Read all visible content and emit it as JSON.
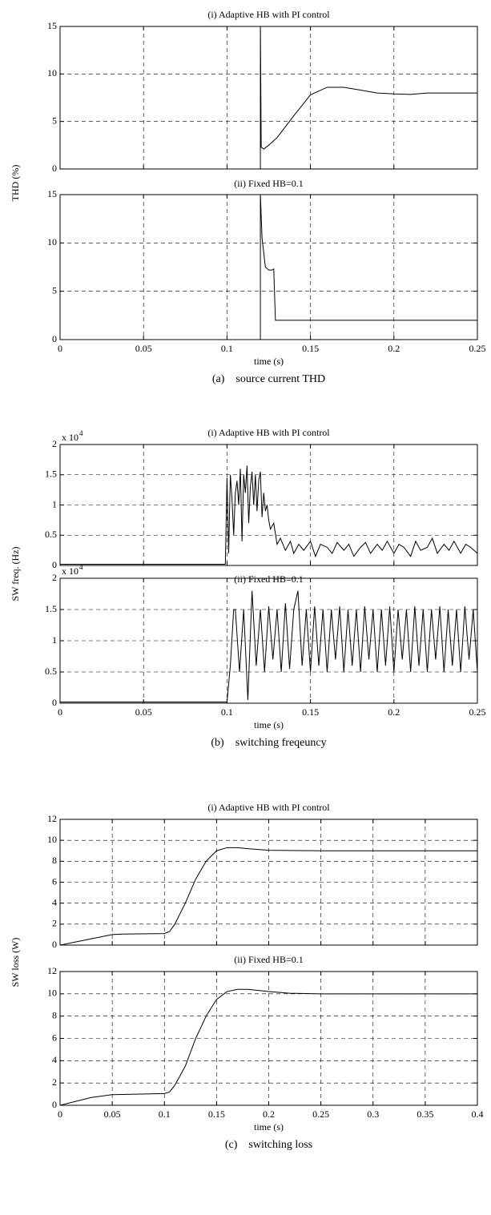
{
  "chart_data": [
    {
      "type": "line",
      "title": "(i) Adaptive HB with PI control",
      "y_label": "THD (%)",
      "x": [
        0,
        0.12,
        0.12,
        0.1205,
        0.122,
        0.125,
        0.13,
        0.14,
        0.15,
        0.16,
        0.17,
        0.18,
        0.19,
        0.2,
        0.21,
        0.22,
        0.25
      ],
      "values": [
        0,
        0,
        15,
        2.3,
        2.1,
        2.5,
        3.3,
        5.6,
        7.8,
        8.6,
        8.6,
        8.3,
        8.0,
        7.9,
        7.85,
        8.0,
        8.0
      ],
      "color": "#000000",
      "xlim": [
        0,
        0.25
      ],
      "ylim": [
        0,
        15
      ],
      "xticks": [
        0,
        0.05,
        0.1,
        0.15,
        0.2,
        0.25
      ],
      "yticks": [
        0,
        5,
        10,
        15
      ],
      "grid": true,
      "show_xtick_labels": false
    },
    {
      "type": "line",
      "title": "(ii) Fixed HB=0.1",
      "x_label": "time (s)",
      "caption": "(a)    source current THD",
      "x": [
        0,
        0.12,
        0.12,
        0.121,
        0.122,
        0.123,
        0.125,
        0.127,
        0.128,
        0.129,
        0.25
      ],
      "values": [
        0,
        0,
        15,
        10.5,
        9,
        7.5,
        7.2,
        7.2,
        7.3,
        2,
        2
      ],
      "color": "#000000",
      "xlim": [
        0,
        0.25
      ],
      "ylim": [
        0,
        15
      ],
      "xticks": [
        0,
        0.05,
        0.1,
        0.15,
        0.2,
        0.25
      ],
      "yticks": [
        0,
        5,
        10,
        15
      ],
      "grid": true,
      "show_xtick_labels": true
    },
    {
      "type": "line",
      "title": "(i) Adaptive HB with PI control",
      "y_label": "SW freq. (Hz)",
      "y_exponent_label": "x 10",
      "y_exponent": 4,
      "x": [
        0,
        0.099,
        0.1,
        0.101,
        0.102,
        0.103,
        0.104,
        0.105,
        0.106,
        0.107,
        0.108,
        0.109,
        0.11,
        0.111,
        0.112,
        0.113,
        0.114,
        0.115,
        0.116,
        0.117,
        0.118,
        0.119,
        0.12,
        0.121,
        0.122,
        0.123,
        0.124,
        0.125,
        0.126,
        0.128,
        0.13,
        0.132,
        0.135,
        0.138,
        0.14,
        0.143,
        0.146,
        0.15,
        0.153,
        0.156,
        0.16,
        0.163,
        0.166,
        0.17,
        0.173,
        0.176,
        0.18,
        0.183,
        0.186,
        0.19,
        0.193,
        0.196,
        0.2,
        0.203,
        0.206,
        0.21,
        0.213,
        0.216,
        0.22,
        0.223,
        0.226,
        0.23,
        0.233,
        0.236,
        0.24,
        0.243,
        0.246,
        0.25
      ],
      "values": [
        0.02,
        0.02,
        1.45,
        0.2,
        1.5,
        1.1,
        0.5,
        1.2,
        1.4,
        1.0,
        1.6,
        0.4,
        1.5,
        1.2,
        1.65,
        0.7,
        1.3,
        1.55,
        1.0,
        1.5,
        0.9,
        1.4,
        1.55,
        0.8,
        1.2,
        0.9,
        1.0,
        0.75,
        0.6,
        0.7,
        0.35,
        0.45,
        0.25,
        0.4,
        0.2,
        0.35,
        0.25,
        0.4,
        0.15,
        0.35,
        0.3,
        0.2,
        0.38,
        0.25,
        0.35,
        0.15,
        0.3,
        0.38,
        0.2,
        0.35,
        0.25,
        0.4,
        0.2,
        0.35,
        0.3,
        0.15,
        0.4,
        0.25,
        0.3,
        0.45,
        0.2,
        0.35,
        0.25,
        0.4,
        0.2,
        0.35,
        0.3,
        0.2
      ],
      "color": "#000000",
      "xlim": [
        0,
        0.25
      ],
      "ylim": [
        0,
        2
      ],
      "xticks": [
        0,
        0.05,
        0.1,
        0.15,
        0.2,
        0.25
      ],
      "yticks": [
        0,
        0.5,
        1,
        1.5,
        2
      ],
      "grid": true,
      "show_xtick_labels": false
    },
    {
      "type": "line",
      "title": "(ii) Fixed HB=0.1",
      "y_exponent_label": "x 10",
      "y_exponent": 4,
      "x_label": "time (s)",
      "caption": "(b)    switching freqeuncy",
      "x": [
        0,
        0.1,
        0.102,
        0.104,
        0.105,
        0.1075,
        0.11,
        0.1125,
        0.115,
        0.1175,
        0.12,
        0.1225,
        0.125,
        0.1275,
        0.13,
        0.1325,
        0.135,
        0.1375,
        0.14,
        0.1425,
        0.145,
        0.1475,
        0.15,
        0.1525,
        0.155,
        0.1575,
        0.16,
        0.1625,
        0.165,
        0.1675,
        0.17,
        0.1725,
        0.175,
        0.1775,
        0.18,
        0.1825,
        0.185,
        0.1875,
        0.19,
        0.1925,
        0.195,
        0.1975,
        0.2,
        0.2025,
        0.205,
        0.2075,
        0.21,
        0.2125,
        0.215,
        0.2175,
        0.22,
        0.2225,
        0.225,
        0.2275,
        0.23,
        0.2325,
        0.235,
        0.2375,
        0.24,
        0.2425,
        0.245,
        0.2475,
        0.25
      ],
      "values": [
        0.02,
        0.02,
        0.6,
        1.5,
        1.5,
        0.5,
        1.5,
        0.05,
        1.8,
        0.6,
        1.5,
        0.5,
        1.55,
        0.7,
        1.5,
        0.5,
        1.6,
        0.55,
        1.5,
        1.8,
        0.6,
        1.5,
        0.5,
        1.55,
        0.6,
        1.5,
        0.5,
        1.5,
        0.7,
        1.55,
        0.5,
        1.5,
        0.6,
        1.5,
        0.5,
        1.55,
        0.7,
        1.5,
        0.5,
        1.5,
        0.6,
        1.55,
        0.5,
        1.5,
        0.7,
        1.5,
        0.5,
        1.55,
        0.6,
        1.5,
        0.5,
        1.5,
        0.7,
        1.55,
        0.5,
        1.5,
        0.6,
        1.5,
        0.5,
        1.55,
        0.7,
        1.5,
        0.5
      ],
      "color": "#000000",
      "xlim": [
        0,
        0.25
      ],
      "ylim": [
        0,
        2
      ],
      "xticks": [
        0,
        0.05,
        0.1,
        0.15,
        0.2,
        0.25
      ],
      "yticks": [
        0,
        0.5,
        1,
        1.5,
        2
      ],
      "grid": true,
      "show_xtick_labels": true
    },
    {
      "type": "line",
      "title": "(i) Adaptive HB with PI control",
      "y_label": "SW loss (W)",
      "x": [
        0,
        0.02,
        0.04,
        0.05,
        0.06,
        0.1,
        0.105,
        0.11,
        0.12,
        0.13,
        0.14,
        0.15,
        0.16,
        0.17,
        0.18,
        0.2,
        0.25,
        0.4
      ],
      "values": [
        0,
        0.4,
        0.8,
        1.0,
        1.05,
        1.1,
        1.3,
        2,
        4,
        6.3,
        8,
        9,
        9.3,
        9.3,
        9.2,
        9.05,
        9.0,
        9.0
      ],
      "color": "#000000",
      "xlim": [
        0,
        0.4
      ],
      "ylim": [
        0,
        12
      ],
      "xticks": [
        0,
        0.05,
        0.1,
        0.15,
        0.2,
        0.25,
        0.3,
        0.35,
        0.4
      ],
      "yticks": [
        0,
        2,
        4,
        6,
        8,
        10,
        12
      ],
      "grid": true,
      "show_xtick_labels": false
    },
    {
      "type": "line",
      "title": "(ii) Fixed HB=0.1",
      "x_label": "time (s)",
      "caption": "(c)    switching loss",
      "x": [
        0,
        0.03,
        0.05,
        0.1,
        0.105,
        0.11,
        0.12,
        0.13,
        0.14,
        0.15,
        0.16,
        0.17,
        0.18,
        0.19,
        0.2,
        0.22,
        0.25,
        0.4
      ],
      "values": [
        0,
        0.7,
        0.95,
        1.05,
        1.2,
        1.8,
        3.5,
        6,
        8,
        9.5,
        10.2,
        10.4,
        10.4,
        10.3,
        10.2,
        10.05,
        10.0,
        10.0
      ],
      "color": "#000000",
      "xlim": [
        0,
        0.4
      ],
      "ylim": [
        0,
        12
      ],
      "xticks": [
        0,
        0.05,
        0.1,
        0.15,
        0.2,
        0.25,
        0.3,
        0.35,
        0.4
      ],
      "yticks": [
        0,
        2,
        4,
        6,
        8,
        10,
        12
      ],
      "grid": true,
      "show_xtick_labels": true
    }
  ]
}
